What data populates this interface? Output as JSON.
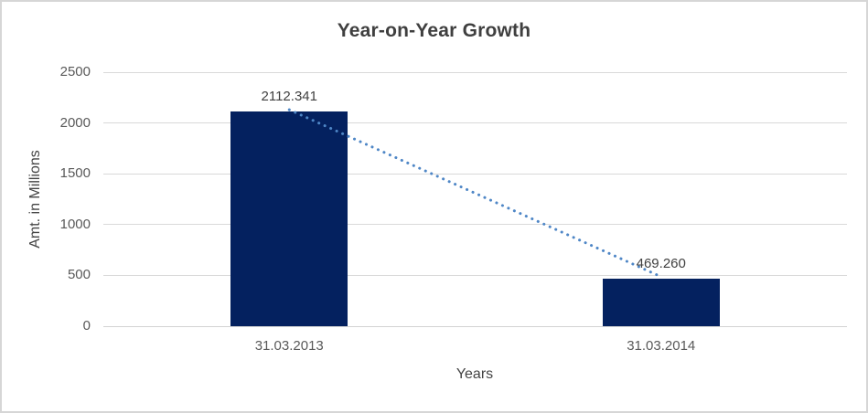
{
  "chart_data": {
    "type": "bar",
    "title": "Year-on-Year Growth",
    "categories": [
      "31.03.2013",
      "31.03.2014"
    ],
    "values": [
      2112.341,
      469.26
    ],
    "data_labels": [
      "2112.341",
      "469.260"
    ],
    "xlabel": "Years",
    "ylabel": "Amt. in Millions",
    "ylim": [
      0,
      2500
    ],
    "yticks": [
      0,
      500,
      1000,
      1500,
      2000,
      2500
    ],
    "grid": true,
    "legend": "none",
    "bar_color": "#04215f",
    "gridline_color": "#d9d9d9",
    "axis_line_color": "#d2d2d2",
    "trendline": {
      "type": "linear",
      "style": "dotted",
      "color": "#4e86c6"
    },
    "title_color": "#3f3f3f",
    "data_label_color": "#404040",
    "axis_text_color": "#595959",
    "background": "#ffffff",
    "border_color": "#d6d6d6"
  }
}
